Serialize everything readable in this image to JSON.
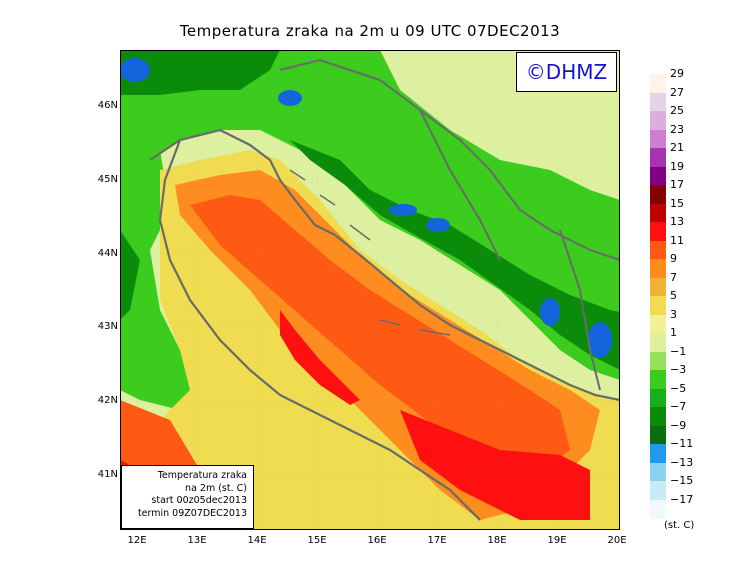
{
  "title": "Temperatura zraka na 2m u 09 UTC 07DEC2013",
  "watermark": "©DHMZ",
  "info_box": {
    "line1": "Temperatura zraka",
    "line2": "na 2m (st. C)",
    "line3": "start 00z05dec2013",
    "line4": "termin 09Z07DEC2013"
  },
  "lat_labels": [
    "46N",
    "45N",
    "44N",
    "43N",
    "42N",
    "41N"
  ],
  "lon_labels": [
    "12E",
    "13E",
    "14E",
    "15E",
    "16E",
    "17E",
    "18E",
    "19E",
    "20E"
  ],
  "colorbar": {
    "unit": "(st. C)",
    "labels": [
      "29",
      "27",
      "25",
      "23",
      "21",
      "19",
      "17",
      "15",
      "13",
      "11",
      "9",
      "7",
      "5",
      "3",
      "1",
      "−1",
      "−3",
      "−5",
      "−7",
      "−9",
      "−11",
      "−13",
      "−15",
      "−17"
    ],
    "colors": [
      "#fff3ea",
      "#e8d2ea",
      "#dcaee0",
      "#cc7fd0",
      "#a832b4",
      "#820082",
      "#820000",
      "#be0000",
      "#ff1010",
      "#ff5a14",
      "#ff8c1e",
      "#f0b432",
      "#f0dc50",
      "#f5f096",
      "#dcf0a0",
      "#96e15a",
      "#3ccc1e",
      "#18b018",
      "#0a8c0a",
      "#0a6e10",
      "#1e9bf0",
      "#8cd2f0",
      "#c8ebf5",
      "#f0fafd"
    ]
  },
  "legend_colors": {
    "sea_core": "#ff1010",
    "sea": "#ff5a14",
    "sea_edge": "#ff8c1e",
    "coast": "#f0dc50",
    "lowland": "#dcf0a0",
    "hills": "#3ccc1e",
    "mountains": "#0a8c0a",
    "peaks": "#1464dc"
  }
}
